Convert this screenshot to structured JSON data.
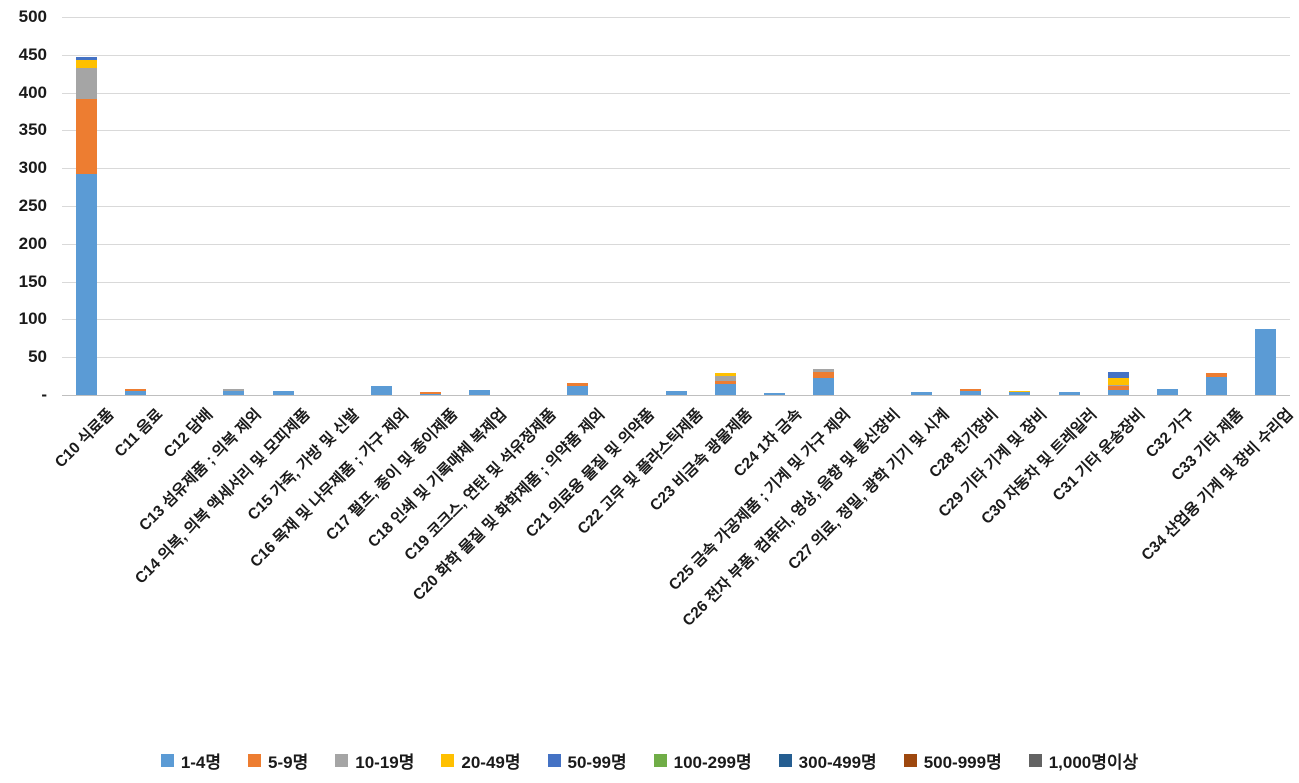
{
  "chart_data": {
    "type": "bar",
    "stacked": true,
    "title": "",
    "xlabel": "",
    "ylabel": "",
    "grid": true,
    "legend_position": "bottom",
    "y_axis": {
      "min": 0,
      "max": 500,
      "step": 50,
      "tick_labels": [
        "500",
        "450",
        "400",
        "350",
        "300",
        "250",
        "200",
        "150",
        "100",
        "50",
        "-"
      ]
    },
    "categories": [
      "C10 식료품",
      "C11 음료",
      "C12 담배",
      "C13 섬유제품 ; 의복 제외",
      "C14 의복, 의복 액세서리 및 모피제품",
      "C15 가죽, 가방 및 신발",
      "C16 목재 및 나무제품 ; 가구 제외",
      "C17 펄프, 종이 및 종이제품",
      "C18 인쇄 및 기록매체 복제업",
      "C19 코크스, 연탄 및 석유정제품",
      "C20 화학 물질 및 화학제품 ; 의약품 제외",
      "C21 의료용 물질 및 의약품",
      "C22 고무 및 플라스틱제품",
      "C23 비금속 광물제품",
      "C24 1차 금속",
      "C25 금속 가공제품 ; 기계 및 가구 제외",
      "C26 전자 부품, 컴퓨터, 영상, 음향 및 통신장비",
      "C27 의료, 정밀, 광학 기기 및 시계",
      "C28 전기장비",
      "C29 기타 기계 및 장비",
      "C30 자동차 및 트레일러",
      "C31 기타 운송장비",
      "C32 가구",
      "C33 기타 제품",
      "C34 산업용 기계 및 장비 수리업"
    ],
    "series": [
      {
        "name": "1-4명",
        "color": "#5B9BD5",
        "values": [
          292,
          5,
          0,
          5,
          6,
          0,
          12,
          2,
          7,
          0,
          12,
          0,
          6,
          15,
          3,
          23,
          0,
          4,
          5,
          4,
          4,
          7,
          8,
          24,
          87
        ]
      },
      {
        "name": "5-9명",
        "color": "#ED7D31",
        "values": [
          100,
          3,
          0,
          0,
          0,
          0,
          0,
          2,
          0,
          0,
          4,
          0,
          0,
          3,
          0,
          8,
          0,
          0,
          3,
          0,
          0,
          5,
          0,
          5,
          0
        ]
      },
      {
        "name": "10-19명",
        "color": "#A5A5A5",
        "values": [
          40,
          0,
          0,
          3,
          0,
          0,
          0,
          0,
          0,
          0,
          0,
          0,
          0,
          7,
          0,
          3,
          0,
          0,
          0,
          0,
          0,
          1,
          0,
          0,
          0
        ]
      },
      {
        "name": "20-49명",
        "color": "#FFC000",
        "values": [
          11,
          0,
          0,
          0,
          0,
          0,
          0,
          0,
          0,
          0,
          0,
          0,
          0,
          4,
          0,
          0,
          0,
          0,
          0,
          2,
          0,
          10,
          0,
          0,
          0
        ]
      },
      {
        "name": "50-99명",
        "color": "#4472C4",
        "values": [
          4,
          0,
          0,
          0,
          0,
          0,
          0,
          0,
          0,
          0,
          0,
          0,
          0,
          0,
          0,
          0,
          0,
          0,
          0,
          0,
          0,
          8,
          0,
          0,
          0
        ]
      },
      {
        "name": "100-299명",
        "color": "#70AD47",
        "values": [
          0,
          0,
          0,
          0,
          0,
          0,
          0,
          0,
          0,
          0,
          0,
          0,
          0,
          0,
          0,
          0,
          0,
          0,
          0,
          0,
          0,
          0,
          0,
          0,
          0
        ]
      },
      {
        "name": "300-499명",
        "color": "#255E91",
        "values": [
          0,
          0,
          0,
          0,
          0,
          0,
          0,
          0,
          0,
          0,
          0,
          0,
          0,
          0,
          0,
          0,
          0,
          0,
          0,
          0,
          0,
          0,
          0,
          0,
          0
        ]
      },
      {
        "name": "500-999명",
        "color": "#9E480E",
        "values": [
          0,
          0,
          0,
          0,
          0,
          0,
          0,
          0,
          0,
          0,
          0,
          0,
          0,
          0,
          0,
          0,
          0,
          0,
          0,
          0,
          0,
          0,
          0,
          0,
          0
        ]
      },
      {
        "name": "1,000명이상",
        "color": "#636363",
        "values": [
          0,
          0,
          0,
          0,
          0,
          0,
          0,
          0,
          0,
          0,
          0,
          0,
          0,
          0,
          0,
          0,
          0,
          0,
          0,
          0,
          0,
          0,
          0,
          0,
          0
        ]
      }
    ]
  },
  "colors": {
    "gridline": "#D9D9D9",
    "axis_line": "#BFBFBF",
    "text": "#1A1A1A",
    "background": "#FFFFFF"
  }
}
